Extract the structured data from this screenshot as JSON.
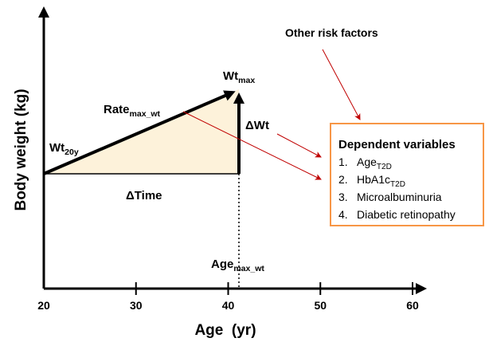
{
  "diagram": {
    "y_axis_label": "Body weight (kg)",
    "x_axis_label": "Age  (yr)",
    "x_ticks": [
      20,
      30,
      40,
      50,
      60
    ],
    "wt_max": {
      "main": "Wt",
      "sub": "max"
    },
    "rate": {
      "main": "Rate",
      "sub": "max_wt"
    },
    "wt_20y": {
      "main": "Wt",
      "sub": "20y"
    },
    "delta_wt": "ΔWt",
    "delta_time": "ΔTime",
    "age_max": {
      "main": "Age",
      "sub": "max_wt"
    },
    "other_risk": "Other risk factors",
    "box": {
      "title": "Dependent variables",
      "items": [
        {
          "number": "1.",
          "main": "Age",
          "sub": "T2D"
        },
        {
          "number": "2.",
          "main": "HbA1c",
          "sub": "T2D"
        },
        {
          "number": "3.",
          "main": "Microalbuminuria"
        },
        {
          "number": "4.",
          "main": "Diabetic retinopathy"
        }
      ]
    }
  }
}
